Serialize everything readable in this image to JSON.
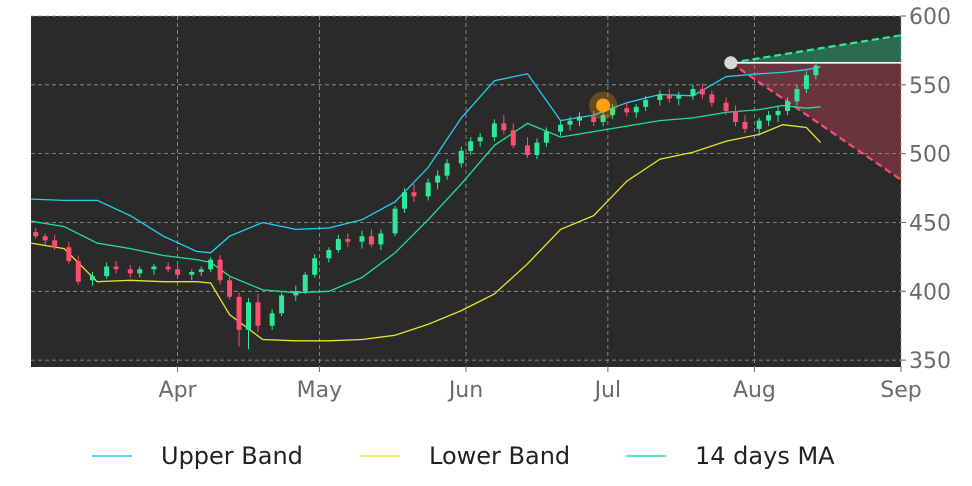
{
  "chart_data": {
    "type": "candlestick-bollinger",
    "title": "",
    "xlabel": "",
    "ylabel": "",
    "ylim": [
      345,
      600
    ],
    "xlim": [
      "2021-03-01",
      "2021-09-01"
    ],
    "x_ticks": [
      {
        "date": "2021-04-01",
        "label": "Apr"
      },
      {
        "date": "2021-05-01",
        "label": "May"
      },
      {
        "date": "2021-06-01",
        "label": "Jun"
      },
      {
        "date": "2021-07-01",
        "label": "Jul"
      },
      {
        "date": "2021-08-01",
        "label": "Aug"
      },
      {
        "date": "2021-09-01",
        "label": "Sep"
      }
    ],
    "y_ticks": [
      350,
      400,
      450,
      500,
      550,
      600
    ],
    "grid": true,
    "legend_position": "bottom",
    "colors": {
      "background": "#2a2a2a",
      "up": "#2ee89a",
      "down": "#ff4d6d",
      "upper_band": "#22d3ee",
      "lower_band": "#e6e62a",
      "ma": "#1fe0a0",
      "forecast_up": "#2ee89a",
      "forecast_down": "#ff4d6d",
      "marker_orange": "#ff9f0a",
      "marker_gray": "#d9d9d9",
      "level_line": "#ffffff"
    },
    "series": [
      {
        "name": "Upper Band",
        "values": [
          [
            "2021-03-01",
            467
          ],
          [
            "2021-03-08",
            466
          ],
          [
            "2021-03-15",
            466
          ],
          [
            "2021-03-22",
            455
          ],
          [
            "2021-03-29",
            440
          ],
          [
            "2021-04-05",
            429
          ],
          [
            "2021-04-08",
            428
          ],
          [
            "2021-04-12",
            440
          ],
          [
            "2021-04-19",
            450
          ],
          [
            "2021-04-26",
            445
          ],
          [
            "2021-05-03",
            446
          ],
          [
            "2021-05-10",
            452
          ],
          [
            "2021-05-17",
            465
          ],
          [
            "2021-05-24",
            490
          ],
          [
            "2021-05-31",
            526
          ],
          [
            "2021-06-07",
            553
          ],
          [
            "2021-06-14",
            558
          ],
          [
            "2021-06-21",
            524
          ],
          [
            "2021-06-28",
            528
          ],
          [
            "2021-07-05",
            537
          ],
          [
            "2021-07-12",
            543
          ],
          [
            "2021-07-19",
            542
          ],
          [
            "2021-07-26",
            556
          ],
          [
            "2021-08-02",
            558
          ],
          [
            "2021-08-07",
            559
          ],
          [
            "2021-08-12",
            561
          ],
          [
            "2021-08-15",
            563
          ]
        ]
      },
      {
        "name": "Lower Band",
        "values": [
          [
            "2021-03-01",
            435
          ],
          [
            "2021-03-08",
            431
          ],
          [
            "2021-03-15",
            407
          ],
          [
            "2021-03-22",
            408
          ],
          [
            "2021-03-29",
            407
          ],
          [
            "2021-04-05",
            407
          ],
          [
            "2021-04-08",
            406
          ],
          [
            "2021-04-12",
            383
          ],
          [
            "2021-04-19",
            365
          ],
          [
            "2021-04-26",
            364
          ],
          [
            "2021-05-03",
            364
          ],
          [
            "2021-05-10",
            365
          ],
          [
            "2021-05-17",
            368
          ],
          [
            "2021-05-24",
            376
          ],
          [
            "2021-05-31",
            386
          ],
          [
            "2021-06-07",
            398
          ],
          [
            "2021-06-14",
            420
          ],
          [
            "2021-06-21",
            445
          ],
          [
            "2021-06-28",
            455
          ],
          [
            "2021-07-05",
            480
          ],
          [
            "2021-07-12",
            496
          ],
          [
            "2021-07-19",
            501
          ],
          [
            "2021-07-26",
            509
          ],
          [
            "2021-08-02",
            514
          ],
          [
            "2021-08-07",
            521
          ],
          [
            "2021-08-12",
            519
          ],
          [
            "2021-08-15",
            508
          ]
        ]
      },
      {
        "name": "14 days MA",
        "values": [
          [
            "2021-03-01",
            451
          ],
          [
            "2021-03-08",
            447
          ],
          [
            "2021-03-15",
            435
          ],
          [
            "2021-03-22",
            431
          ],
          [
            "2021-03-29",
            426
          ],
          [
            "2021-04-05",
            423
          ],
          [
            "2021-04-08",
            421
          ],
          [
            "2021-04-12",
            411
          ],
          [
            "2021-04-19",
            401
          ],
          [
            "2021-04-26",
            399
          ],
          [
            "2021-05-03",
            400
          ],
          [
            "2021-05-10",
            410
          ],
          [
            "2021-05-17",
            428
          ],
          [
            "2021-05-24",
            452
          ],
          [
            "2021-05-31",
            478
          ],
          [
            "2021-06-07",
            506
          ],
          [
            "2021-06-14",
            522
          ],
          [
            "2021-06-21",
            512
          ],
          [
            "2021-06-28",
            516
          ],
          [
            "2021-07-05",
            520
          ],
          [
            "2021-07-12",
            524
          ],
          [
            "2021-07-19",
            526
          ],
          [
            "2021-07-26",
            530
          ],
          [
            "2021-08-02",
            532
          ],
          [
            "2021-08-07",
            535
          ],
          [
            "2021-08-12",
            533
          ],
          [
            "2021-08-15",
            534
          ]
        ]
      }
    ],
    "candles": [
      [
        "2021-03-02",
        443,
        446,
        438,
        440
      ],
      [
        "2021-03-04",
        440,
        442,
        434,
        437
      ],
      [
        "2021-03-06",
        437,
        441,
        430,
        432
      ],
      [
        "2021-03-09",
        432,
        436,
        420,
        422
      ],
      [
        "2021-03-11",
        422,
        426,
        405,
        407
      ],
      [
        "2021-03-14",
        408,
        414,
        404,
        411
      ],
      [
        "2021-03-17",
        411,
        421,
        409,
        418
      ],
      [
        "2021-03-19",
        418,
        422,
        413,
        416
      ],
      [
        "2021-03-22",
        416,
        419,
        410,
        413
      ],
      [
        "2021-03-24",
        413,
        418,
        410,
        416
      ],
      [
        "2021-03-27",
        416,
        420,
        412,
        418
      ],
      [
        "2021-03-30",
        418,
        421,
        414,
        416
      ],
      [
        "2021-04-01",
        416,
        419,
        410,
        412
      ],
      [
        "2021-04-04",
        412,
        416,
        408,
        414
      ],
      [
        "2021-04-06",
        414,
        418,
        411,
        416
      ],
      [
        "2021-04-08",
        416,
        425,
        414,
        423
      ],
      [
        "2021-04-10",
        423,
        426,
        405,
        408
      ],
      [
        "2021-04-12",
        408,
        411,
        394,
        396
      ],
      [
        "2021-04-14",
        396,
        399,
        360,
        372
      ],
      [
        "2021-04-16",
        372,
        395,
        358,
        392
      ],
      [
        "2021-04-18",
        392,
        398,
        370,
        375
      ],
      [
        "2021-04-21",
        375,
        387,
        372,
        384
      ],
      [
        "2021-04-23",
        384,
        399,
        382,
        397
      ],
      [
        "2021-04-26",
        397,
        404,
        393,
        400
      ],
      [
        "2021-04-28",
        400,
        414,
        398,
        412
      ],
      [
        "2021-04-30",
        412,
        427,
        410,
        424
      ],
      [
        "2021-05-03",
        424,
        432,
        421,
        430
      ],
      [
        "2021-05-05",
        430,
        441,
        428,
        438
      ],
      [
        "2021-05-07",
        438,
        442,
        432,
        436
      ],
      [
        "2021-05-10",
        436,
        444,
        431,
        440
      ],
      [
        "2021-05-12",
        440,
        445,
        432,
        434
      ],
      [
        "2021-05-14",
        434,
        445,
        430,
        442
      ],
      [
        "2021-05-17",
        442,
        462,
        440,
        460
      ],
      [
        "2021-05-19",
        460,
        475,
        457,
        472
      ],
      [
        "2021-05-21",
        472,
        478,
        465,
        469
      ],
      [
        "2021-05-24",
        469,
        482,
        466,
        479
      ],
      [
        "2021-05-26",
        479,
        488,
        474,
        484
      ],
      [
        "2021-05-28",
        484,
        496,
        481,
        493
      ],
      [
        "2021-05-31",
        493,
        505,
        490,
        502
      ],
      [
        "2021-06-02",
        502,
        512,
        499,
        509
      ],
      [
        "2021-06-04",
        509,
        515,
        505,
        512
      ],
      [
        "2021-06-07",
        512,
        525,
        509,
        522
      ],
      [
        "2021-06-09",
        522,
        528,
        514,
        517
      ],
      [
        "2021-06-11",
        517,
        522,
        504,
        506
      ],
      [
        "2021-06-14",
        506,
        512,
        497,
        499
      ],
      [
        "2021-06-16",
        499,
        511,
        496,
        508
      ],
      [
        "2021-06-18",
        508,
        519,
        505,
        516
      ],
      [
        "2021-06-21",
        516,
        524,
        513,
        521
      ],
      [
        "2021-06-23",
        521,
        527,
        517,
        524
      ],
      [
        "2021-06-25",
        524,
        530,
        520,
        527
      ],
      [
        "2021-06-28",
        527,
        531,
        520,
        523
      ],
      [
        "2021-06-30",
        523,
        530,
        520,
        528
      ],
      [
        "2021-07-02",
        528,
        536,
        525,
        533
      ],
      [
        "2021-07-05",
        533,
        537,
        527,
        530
      ],
      [
        "2021-07-07",
        530,
        536,
        526,
        534
      ],
      [
        "2021-07-09",
        534,
        542,
        531,
        539
      ],
      [
        "2021-07-12",
        539,
        546,
        535,
        543
      ],
      [
        "2021-07-14",
        543,
        547,
        537,
        540
      ],
      [
        "2021-07-16",
        540,
        545,
        535,
        542
      ],
      [
        "2021-07-19",
        542,
        550,
        539,
        547
      ],
      [
        "2021-07-21",
        547,
        551,
        540,
        543
      ],
      [
        "2021-07-23",
        543,
        546,
        534,
        537
      ],
      [
        "2021-07-26",
        537,
        541,
        528,
        531
      ],
      [
        "2021-07-28",
        531,
        535,
        520,
        523
      ],
      [
        "2021-07-30",
        523,
        528,
        515,
        518
      ],
      [
        "2021-08-02",
        518,
        526,
        513,
        524
      ],
      [
        "2021-08-04",
        524,
        531,
        520,
        528
      ],
      [
        "2021-08-06",
        528,
        535,
        523,
        531
      ],
      [
        "2021-08-08",
        531,
        541,
        528,
        538
      ],
      [
        "2021-08-10",
        538,
        550,
        535,
        547
      ],
      [
        "2021-08-12",
        547,
        560,
        544,
        557
      ],
      [
        "2021-08-14",
        557,
        567,
        554,
        564
      ]
    ],
    "markers": [
      {
        "date": "2021-06-30",
        "value": 535,
        "color": "orange"
      },
      {
        "date": "2021-07-27",
        "value": 566,
        "color": "gray"
      }
    ],
    "forecast": {
      "start_date": "2021-07-27",
      "start_value": 566,
      "end_date": "2021-09-01",
      "upper_value": 586,
      "lower_value": 481,
      "level_value": 566
    }
  },
  "legend": [
    {
      "label": "Upper Band",
      "color": "#22d3ee"
    },
    {
      "label": "Lower Band",
      "color": "#e6e62a"
    },
    {
      "label": "14 days MA",
      "color": "#1fe0a0"
    }
  ]
}
